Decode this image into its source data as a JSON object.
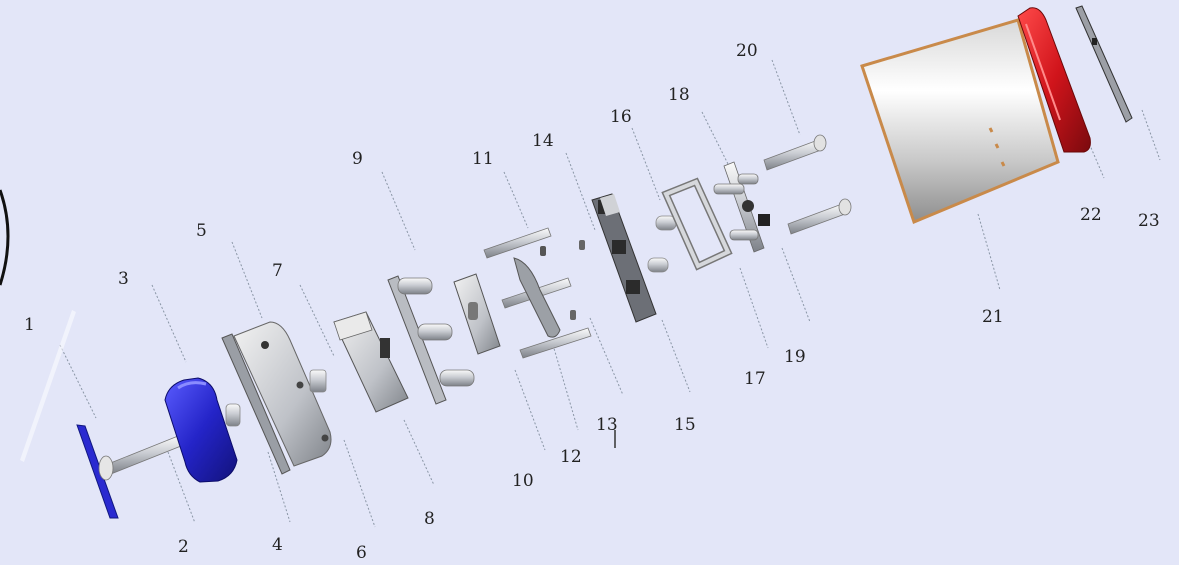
{
  "diagram": {
    "labels": [
      "1",
      "2",
      "3",
      "4",
      "5",
      "6",
      "7",
      "8",
      "9",
      "10",
      "11",
      "12",
      "13",
      "14",
      "15",
      "16",
      "17",
      "18",
      "19",
      "20",
      "21",
      "22",
      "23"
    ]
  },
  "colors": {
    "background": "#e3e6f8",
    "leader": "#8a96a6",
    "part_blue": "#2f2fd8",
    "part_red": "#d0141b",
    "metal": "#cfd3d8",
    "metal_dark": "#6b6f76",
    "copper_edge": "#c98a4a"
  }
}
